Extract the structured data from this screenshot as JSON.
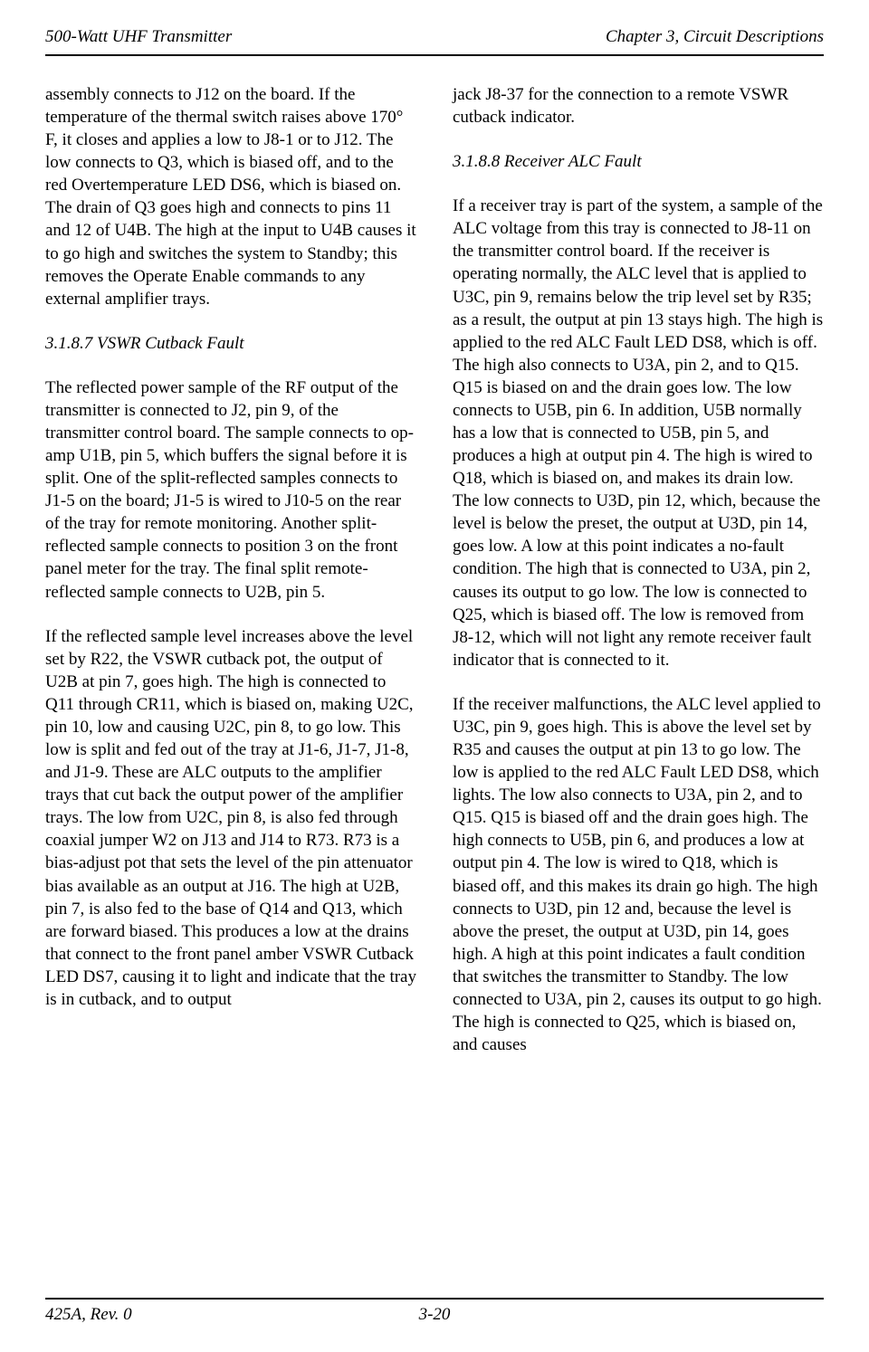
{
  "header": {
    "left": "500-Watt UHF Transmitter",
    "right": "Chapter 3, Circuit Descriptions"
  },
  "leftColumn": {
    "para1": "assembly connects to J12 on the board. If the temperature of the thermal switch raises above 170° F, it closes and applies a low to J8-1 or to J12. The low connects to Q3, which is biased off, and to the red Overtemperature LED DS6, which is biased on. The drain of Q3 goes high and connects to pins 11 and 12 of U4B. The high at the input to U4B causes it to go high and switches the system to Standby; this removes the Operate Enable commands to any external amplifier trays.",
    "heading1": "3.1.8.7 VSWR Cutback Fault",
    "para2": "The reflected power sample of the RF output of the transmitter is connected to J2, pin 9, of the transmitter control board. The sample connects to op-amp U1B, pin 5, which buffers the signal before it is split. One of the split-reflected samples connects to J1-5 on the board; J1-5 is wired to J10-5 on the rear of the tray for remote monitoring. Another split-reflected sample connects to position 3 on the front panel meter for the tray. The final split remote-reflected sample connects to U2B, pin 5.",
    "para3": "If the reflected sample level increases above the level set by R22, the VSWR cutback pot, the output of U2B at pin 7, goes high. The high is connected to Q11 through CR11, which is biased on, making U2C, pin 10, low and causing U2C, pin 8, to go low. This low is split and fed out of the tray at J1-6, J1-7, J1-8, and J1-9. These are ALC outputs to the amplifier trays that cut back the output power of the amplifier trays. The low from U2C, pin 8, is also fed through coaxial jumper W2 on J13 and J14 to R73. R73 is a bias-adjust pot that sets the level of the pin attenuator bias available as an output at J16. The high at U2B, pin 7, is also fed to the base of Q14 and Q13, which are forward biased. This produces a low at the drains that connect to the front panel amber VSWR Cutback LED DS7, causing it to light and indicate that the tray is in cutback, and to output"
  },
  "rightColumn": {
    "para1": "jack J8-37 for the connection to a remote VSWR cutback indicator.",
    "heading1": "3.1.8.8 Receiver ALC Fault",
    "para2": "If a receiver tray is part of the system, a sample of the ALC voltage from this tray is connected to J8-11 on the transmitter control board. If the receiver is operating normally, the ALC level that is applied to U3C, pin 9, remains below the trip level set by R35; as a result, the output at pin 13 stays high. The high is applied to the red ALC Fault LED DS8, which is off. The high also connects to U3A, pin 2, and to Q15.  Q15 is biased on and the drain goes low. The low connects to U5B, pin 6. In addition, U5B normally has a low that is connected to U5B, pin 5, and produces a high at output pin 4. The high is wired to Q18, which is biased on, and makes its drain low. The low connects to U3D, pin 12, which, because the level is below the preset, the output at U3D, pin 14, goes low. A low at this point indicates a no-fault condition. The high that is connected to U3A, pin 2, causes its output to go low. The low is connected to Q25, which is biased off. The low is removed from J8-12, which will not light any remote receiver fault indicator that is connected to it.",
    "para3": "If the receiver malfunctions, the ALC level applied to U3C, pin 9, goes high. This is above the level set by R35 and causes the output at pin 13 to go low. The low is applied to the red ALC Fault LED DS8, which lights. The low also connects to U3A, pin 2, and to Q15.  Q15 is biased off and the drain goes high. The high connects to U5B, pin 6, and produces a low at output pin 4. The low is wired to Q18, which is biased off, and this makes its drain go high. The high connects to U3D, pin 12 and, because the level is above the preset, the output at U3D, pin 14, goes high. A high at this point indicates a fault condition that switches the transmitter to Standby. The low connected to U3A, pin 2, causes its output to go high. The high is connected to Q25, which is biased on, and causes"
  },
  "footer": {
    "left": "425A, Rev. 0",
    "center": "3-20"
  }
}
